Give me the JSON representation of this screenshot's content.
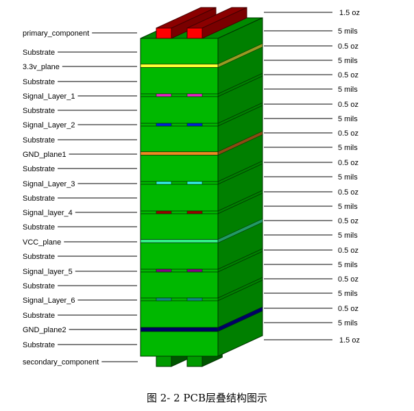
{
  "left_labels": [
    "primary_component",
    "Substrate",
    "3.3v_plane",
    "Substrate",
    "Signal_Layer_1",
    "Substrate",
    "Signal_Layer_2",
    "Substrate",
    "GND_plane1",
    "Substrate",
    "Signal_Layer_3",
    "Substrate",
    "Signal_layer_4",
    "Substrate",
    "VCC_plane",
    "Substrate",
    "Signal_layer_5",
    "Substrate",
    "Signal_Layer_6",
    "Substrate",
    "GND_plane2",
    "Substrate",
    "secondary_component"
  ],
  "right_labels": [
    "1.5 oz",
    "5 mils",
    "0.5 oz",
    "5 mils",
    "0.5 oz",
    "5 mils",
    "0.5 oz",
    "5 mils",
    "0.5 oz",
    "5 mils",
    "0.5 oz",
    "5 mils",
    "0.5 oz",
    "5 mils",
    "0.5 oz",
    "5 mils",
    "0.5 oz",
    "5 mils",
    "0.5 oz",
    "5 mils",
    "0.5 oz",
    "5 mils",
    "1.5 oz"
  ],
  "layers": [
    {
      "name": "3.3v_plane",
      "kind": "plane",
      "color": "#ffff33",
      "side_color": "#999922"
    },
    {
      "name": "Signal_Layer_1",
      "kind": "signal",
      "color": "#ee22cc"
    },
    {
      "name": "Signal_Layer_2",
      "kind": "signal",
      "color": "#0022dd"
    },
    {
      "name": "GND_plane1",
      "kind": "plane",
      "color": "#ee8822",
      "side_color": "#8b4a14"
    },
    {
      "name": "Signal_Layer_3",
      "kind": "signal",
      "color": "#33eeee"
    },
    {
      "name": "Signal_layer_4",
      "kind": "signal",
      "color": "#990000"
    },
    {
      "name": "VCC_plane",
      "kind": "plane",
      "color": "#33ee88",
      "side_color": "#229966"
    },
    {
      "name": "Signal_layer_5",
      "kind": "signal",
      "color": "#880088"
    },
    {
      "name": "Signal_Layer_6",
      "kind": "signal",
      "color": "#118888"
    },
    {
      "name": "GND_plane2",
      "kind": "plane",
      "color": "#000066",
      "side_color": "#000066"
    }
  ],
  "colors": {
    "front": "#00b800",
    "side": "#007f00",
    "top": "#008a00",
    "top_component": "#ff0000",
    "top_component_dark": "#8b0000",
    "bottom_component": "#009900"
  },
  "caption": "图 2- 2 PCB层叠结构图示"
}
